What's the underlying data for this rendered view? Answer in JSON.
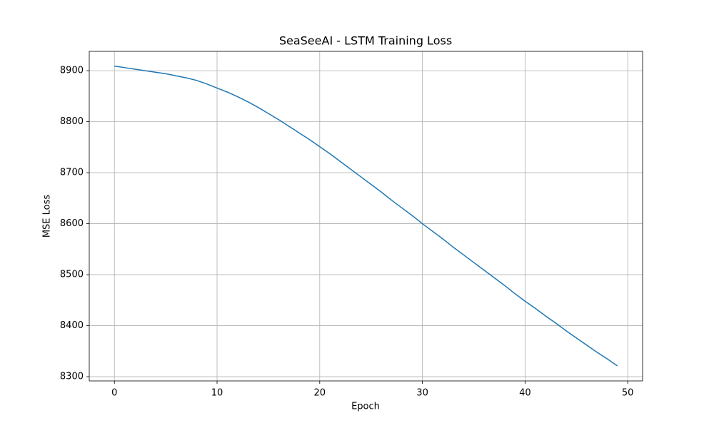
{
  "chart_data": {
    "type": "line",
    "title": "SeaSeeAI - LSTM Training Loss",
    "xlabel": "Epoch",
    "ylabel": "MSE Loss",
    "x": [
      0,
      1,
      2,
      3,
      4,
      5,
      6,
      7,
      8,
      9,
      10,
      11,
      12,
      13,
      14,
      15,
      16,
      17,
      18,
      19,
      20,
      21,
      22,
      23,
      24,
      25,
      26,
      27,
      28,
      29,
      30,
      31,
      32,
      33,
      34,
      35,
      36,
      37,
      38,
      39,
      40,
      41,
      42,
      43,
      44,
      45,
      46,
      47,
      48,
      49
    ],
    "series": [
      {
        "name": "Training Loss",
        "color": "#1f77b4",
        "values": [
          8909,
          8906,
          8903,
          8900,
          8897,
          8894,
          8890,
          8886,
          8881,
          8874,
          8866,
          8858,
          8849,
          8839,
          8828,
          8816,
          8804,
          8791,
          8778,
          8765,
          8751,
          8737,
          8722,
          8707,
          8692,
          8677,
          8662,
          8646,
          8631,
          8616,
          8600,
          8585,
          8570,
          8554,
          8539,
          8524,
          8509,
          8494,
          8479,
          8463,
          8448,
          8434,
          8419,
          8405,
          8390,
          8376,
          8362,
          8348,
          8335,
          8321
        ]
      }
    ],
    "xlim": [
      -2.45,
      51.45
    ],
    "xticks": [
      0,
      10,
      20,
      30,
      40,
      50
    ],
    "ylim": [
      8291.7,
      8937.9
    ],
    "yticks": [
      8300,
      8400,
      8500,
      8600,
      8700,
      8800,
      8900
    ],
    "grid": true
  }
}
